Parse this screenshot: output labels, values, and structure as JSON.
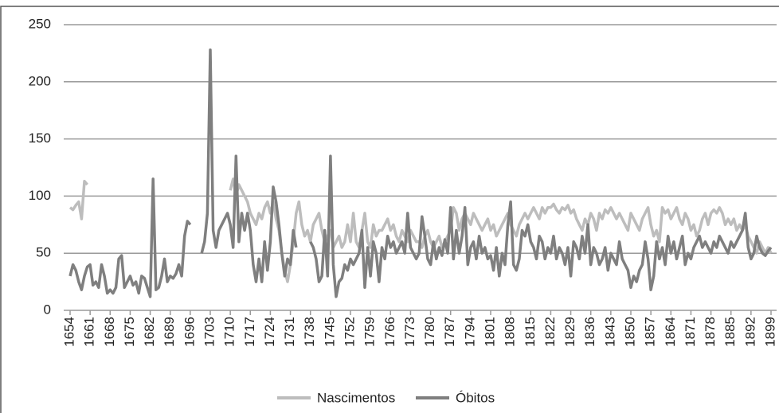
{
  "chart_data": {
    "type": "line",
    "x": [
      1654,
      1655,
      1656,
      1657,
      1658,
      1659,
      1660,
      1661,
      1662,
      1663,
      1664,
      1665,
      1666,
      1667,
      1668,
      1669,
      1670,
      1671,
      1672,
      1673,
      1674,
      1675,
      1676,
      1677,
      1678,
      1679,
      1680,
      1681,
      1682,
      1683,
      1684,
      1685,
      1686,
      1687,
      1688,
      1689,
      1690,
      1691,
      1692,
      1693,
      1694,
      1695,
      1696,
      1697,
      1698,
      1699,
      1700,
      1701,
      1702,
      1703,
      1704,
      1705,
      1706,
      1707,
      1708,
      1709,
      1710,
      1711,
      1712,
      1713,
      1714,
      1715,
      1716,
      1717,
      1718,
      1719,
      1720,
      1721,
      1722,
      1723,
      1724,
      1725,
      1726,
      1727,
      1728,
      1729,
      1730,
      1731,
      1732,
      1733,
      1734,
      1735,
      1736,
      1737,
      1738,
      1739,
      1740,
      1741,
      1742,
      1743,
      1744,
      1745,
      1746,
      1747,
      1748,
      1749,
      1750,
      1751,
      1752,
      1753,
      1754,
      1755,
      1756,
      1757,
      1758,
      1759,
      1760,
      1761,
      1762,
      1763,
      1764,
      1765,
      1766,
      1767,
      1768,
      1769,
      1770,
      1771,
      1772,
      1773,
      1774,
      1775,
      1776,
      1777,
      1778,
      1779,
      1780,
      1781,
      1782,
      1783,
      1784,
      1785,
      1786,
      1787,
      1788,
      1789,
      1790,
      1791,
      1792,
      1793,
      1794,
      1795,
      1796,
      1797,
      1798,
      1799,
      1800,
      1801,
      1802,
      1803,
      1804,
      1805,
      1806,
      1807,
      1808,
      1809,
      1810,
      1811,
      1812,
      1813,
      1814,
      1815,
      1816,
      1817,
      1818,
      1819,
      1820,
      1821,
      1822,
      1823,
      1824,
      1825,
      1826,
      1827,
      1828,
      1829,
      1830,
      1831,
      1832,
      1833,
      1834,
      1835,
      1836,
      1837,
      1838,
      1839,
      1840,
      1841,
      1842,
      1843,
      1844,
      1845,
      1846,
      1847,
      1848,
      1849,
      1850,
      1851,
      1852,
      1853,
      1854,
      1855,
      1856,
      1857,
      1858,
      1859,
      1860,
      1861,
      1862,
      1863,
      1864,
      1865,
      1866,
      1867,
      1868,
      1869,
      1870,
      1871,
      1872,
      1873,
      1874,
      1875,
      1876,
      1877,
      1878,
      1879,
      1880,
      1881,
      1882,
      1883,
      1884,
      1885,
      1886,
      1887,
      1888,
      1889,
      1890,
      1891,
      1892,
      1893,
      1894,
      1895,
      1896,
      1897,
      1898,
      1899
    ],
    "series": [
      {
        "name": "Nascimentos",
        "color": "#bdbdbd",
        "values": [
          90,
          88,
          92,
          95,
          80,
          113,
          110,
          null,
          null,
          null,
          null,
          null,
          null,
          null,
          null,
          null,
          null,
          null,
          null,
          null,
          null,
          null,
          null,
          null,
          null,
          null,
          null,
          null,
          null,
          null,
          null,
          null,
          null,
          null,
          null,
          null,
          null,
          null,
          null,
          null,
          null,
          null,
          null,
          null,
          null,
          null,
          null,
          null,
          null,
          null,
          null,
          null,
          null,
          null,
          null,
          null,
          105,
          115,
          100,
          110,
          105,
          100,
          95,
          85,
          80,
          75,
          85,
          80,
          90,
          95,
          85,
          95,
          80,
          70,
          50,
          35,
          25,
          40,
          60,
          85,
          95,
          75,
          65,
          70,
          60,
          75,
          80,
          85,
          70,
          60,
          65,
          70,
          55,
          60,
          65,
          55,
          60,
          75,
          60,
          85,
          60,
          55,
          70,
          85,
          60,
          55,
          75,
          65,
          70,
          70,
          75,
          80,
          70,
          75,
          65,
          60,
          70,
          65,
          60,
          70,
          65,
          60,
          60,
          55,
          65,
          70,
          60,
          55,
          60,
          65,
          55,
          60,
          65,
          70,
          90,
          85,
          70,
          80,
          85,
          80,
          75,
          85,
          80,
          75,
          70,
          75,
          80,
          70,
          75,
          65,
          70,
          75,
          80,
          85,
          75,
          70,
          65,
          75,
          80,
          85,
          80,
          85,
          90,
          85,
          80,
          90,
          85,
          90,
          90,
          93,
          88,
          85,
          90,
          88,
          92,
          85,
          88,
          80,
          75,
          70,
          80,
          75,
          85,
          80,
          70,
          85,
          80,
          88,
          85,
          90,
          85,
          80,
          85,
          80,
          75,
          70,
          85,
          80,
          75,
          70,
          80,
          85,
          90,
          75,
          65,
          70,
          60,
          90,
          85,
          88,
          80,
          85,
          90,
          80,
          75,
          85,
          80,
          70,
          75,
          65,
          70,
          80,
          85,
          75,
          85,
          88,
          85,
          90,
          85,
          75,
          80,
          75,
          80,
          70,
          75,
          70,
          75,
          65,
          60,
          55,
          50,
          60,
          55,
          50,
          55,
          50
        ]
      },
      {
        "name": "Óbitos",
        "color": "#7f7f7f",
        "values": [
          30,
          40,
          35,
          25,
          18,
          30,
          38,
          40,
          22,
          25,
          20,
          40,
          30,
          15,
          18,
          15,
          20,
          45,
          48,
          20,
          25,
          30,
          22,
          25,
          15,
          30,
          28,
          20,
          12,
          115,
          18,
          20,
          30,
          45,
          25,
          30,
          28,
          32,
          40,
          30,
          65,
          78,
          75,
          null,
          null,
          null,
          50,
          60,
          85,
          228,
          70,
          55,
          70,
          75,
          80,
          85,
          75,
          55,
          135,
          60,
          85,
          70,
          85,
          70,
          40,
          25,
          45,
          25,
          60,
          35,
          60,
          108,
          95,
          75,
          50,
          30,
          45,
          40,
          70,
          55,
          null,
          null,
          null,
          null,
          60,
          55,
          45,
          25,
          30,
          70,
          30,
          135,
          40,
          12,
          25,
          28,
          40,
          35,
          45,
          40,
          45,
          50,
          70,
          20,
          55,
          30,
          60,
          50,
          25,
          55,
          45,
          65,
          55,
          60,
          50,
          55,
          60,
          50,
          85,
          55,
          50,
          45,
          50,
          82,
          65,
          45,
          40,
          60,
          45,
          55,
          48,
          62,
          50,
          90,
          45,
          70,
          50,
          65,
          90,
          40,
          55,
          60,
          45,
          65,
          50,
          55,
          45,
          48,
          35,
          55,
          30,
          50,
          40,
          75,
          95,
          40,
          35,
          45,
          70,
          65,
          75,
          60,
          55,
          45,
          65,
          60,
          45,
          55,
          50,
          65,
          45,
          55,
          50,
          40,
          55,
          30,
          60,
          55,
          45,
          65,
          50,
          75,
          40,
          55,
          50,
          40,
          45,
          55,
          35,
          50,
          45,
          40,
          60,
          45,
          40,
          35,
          20,
          30,
          25,
          35,
          40,
          60,
          45,
          18,
          30,
          60,
          45,
          55,
          40,
          65,
          50,
          60,
          45,
          55,
          65,
          40,
          50,
          45,
          55,
          60,
          65,
          55,
          60,
          55,
          50,
          60,
          55,
          65,
          60,
          55,
          50,
          60,
          55,
          60,
          65,
          70,
          85,
          55,
          45,
          50,
          65,
          55,
          50,
          48,
          52,
          55
        ]
      }
    ],
    "xlim": [
      1654,
      1899
    ],
    "xticks": [
      1654,
      1661,
      1668,
      1675,
      1682,
      1689,
      1696,
      1703,
      1710,
      1717,
      1724,
      1731,
      1738,
      1745,
      1752,
      1759,
      1766,
      1773,
      1780,
      1787,
      1794,
      1801,
      1808,
      1815,
      1822,
      1829,
      1836,
      1843,
      1850,
      1857,
      1864,
      1871,
      1878,
      1885,
      1892,
      1899
    ],
    "ylim": [
      0,
      250
    ],
    "yticks": [
      0,
      50,
      100,
      150,
      200,
      250
    ],
    "grid": true,
    "legend": "bottom"
  }
}
